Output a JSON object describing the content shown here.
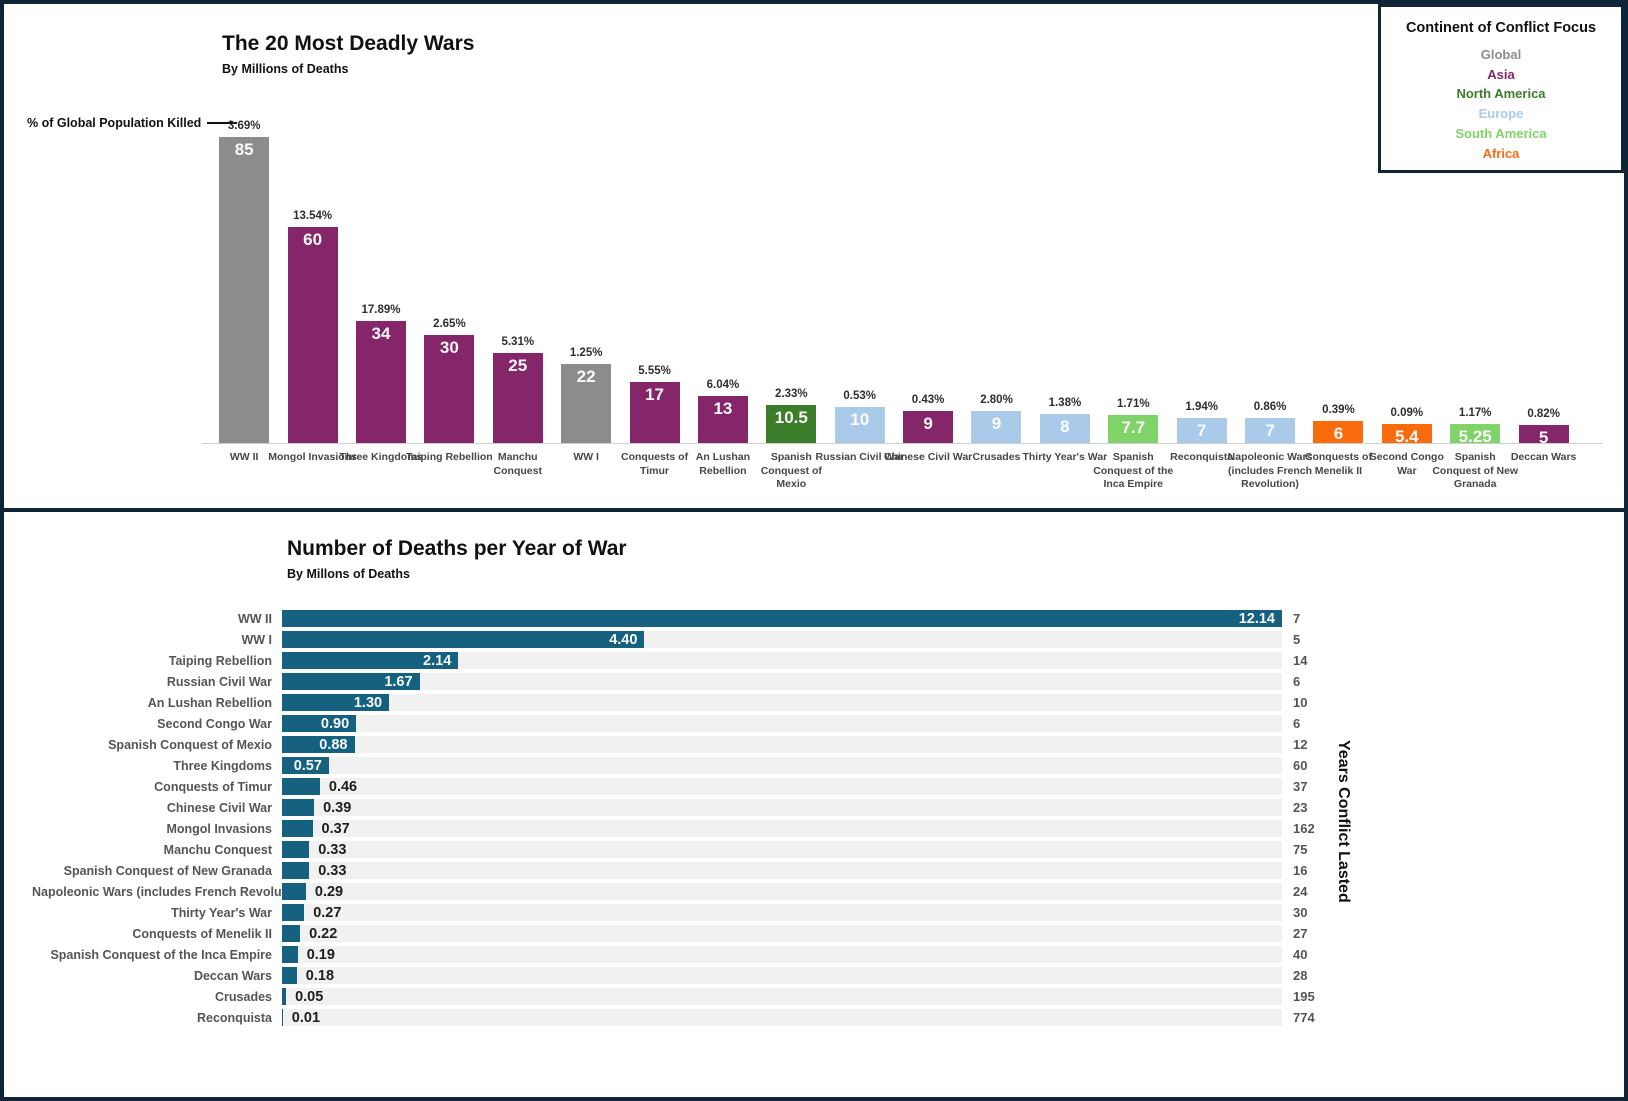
{
  "colors": {
    "border_navy": "#0F2537",
    "track_gray": "#F1F1F1",
    "axis_gray": "#CFCFCF",
    "bar_teal": "#16617F"
  },
  "chart_data": [
    {
      "type": "bar",
      "title": "The 20 Most Deadly Wars",
      "subtitle": "By Millions of Deaths",
      "annotation": "% of Global Population Killed",
      "ylim": [
        0,
        85
      ],
      "grid": false,
      "legend_position": "top-right",
      "legend": {
        "title": "Continent of Conflict Focus",
        "items": [
          {
            "label": "Global",
            "color": "#8C8C8C"
          },
          {
            "label": "Asia",
            "color": "#86266A"
          },
          {
            "label": "North America",
            "color": "#3B7D28"
          },
          {
            "label": "Europe",
            "color": "#A9CBE9"
          },
          {
            "label": "South America",
            "color": "#7FD369"
          },
          {
            "label": "Africa",
            "color": "#F96B0C"
          }
        ]
      },
      "categories": [
        "WW II",
        "Mongol Invasions",
        "Three Kingdoms",
        "Taiping Rebellion",
        "Manchu Conquest",
        "WW I",
        "Conquests of Timur",
        "An Lushan Rebellion",
        "Spanish Conquest of Mexio",
        "Russian Civil War",
        "Chinese Civil War",
        "Crusades",
        "Thirty Year's War",
        "Spanish Conquest of the Inca Empire",
        "Reconquista",
        "Napoleonic Wars (includes French Revolution)",
        "Conquests of Menelik II",
        "Second Congo War",
        "Spanish Conquest of New Granada",
        "Deccan Wars"
      ],
      "values": [
        85,
        60,
        34,
        30,
        25,
        22,
        17,
        13,
        10.5,
        10,
        9,
        9,
        8,
        7.7,
        7,
        7,
        6,
        5.4,
        5.25,
        5
      ],
      "value_labels": [
        "85",
        "60",
        "34",
        "30",
        "25",
        "22",
        "17",
        "13",
        "10.5",
        "10",
        "9",
        "9",
        "8",
        "7.7",
        "7",
        "7",
        "6",
        "5.4",
        "5.25",
        "5"
      ],
      "pct_labels": [
        "3.69%",
        "13.54%",
        "17.89%",
        "2.65%",
        "5.31%",
        "1.25%",
        "5.55%",
        "6.04%",
        "2.33%",
        "0.53%",
        "0.43%",
        "2.80%",
        "1.38%",
        "1.71%",
        "1.94%",
        "0.86%",
        "0.39%",
        "0.09%",
        "1.17%",
        "0.82%"
      ],
      "continents": [
        "Global",
        "Asia",
        "Asia",
        "Asia",
        "Asia",
        "Global",
        "Asia",
        "Asia",
        "North America",
        "Europe",
        "Asia",
        "Europe",
        "Europe",
        "South America",
        "Europe",
        "Europe",
        "Africa",
        "Africa",
        "South America",
        "Asia"
      ]
    },
    {
      "type": "bar-horizontal",
      "title": "Number of Deaths per Year of War",
      "subtitle": "By Millons of Deaths",
      "right_axis_label": "Years Conflict Lasted",
      "xlim": [
        0,
        12.14
      ],
      "grid": false,
      "bar_color": "#16617F",
      "categories": [
        "WW II",
        "WW I",
        "Taiping Rebellion",
        "Russian Civil War",
        "An Lushan Rebellion",
        "Second Congo War",
        "Spanish Conquest of Mexio",
        "Three Kingdoms",
        "Conquests of Timur",
        "Chinese Civil War",
        "Mongol Invasions",
        "Manchu Conquest",
        "Spanish Conquest of New Granada",
        "Napoleonic Wars (includes French Revolution)",
        "Thirty Year's War",
        "Conquests of Menelik II",
        "Spanish Conquest of the Inca Empire",
        "Deccan Wars",
        "Crusades",
        "Reconquista"
      ],
      "values": [
        12.14,
        4.4,
        2.14,
        1.67,
        1.3,
        0.9,
        0.88,
        0.57,
        0.46,
        0.39,
        0.37,
        0.33,
        0.33,
        0.29,
        0.27,
        0.22,
        0.19,
        0.18,
        0.05,
        0.01
      ],
      "value_labels": [
        "12.14",
        "4.40",
        "2.14",
        "1.67",
        "1.30",
        "0.90",
        "0.88",
        "0.57",
        "0.46",
        "0.39",
        "0.37",
        "0.33",
        "0.33",
        "0.29",
        "0.27",
        "0.22",
        "0.19",
        "0.18",
        "0.05",
        "0.01"
      ],
      "years_conflict_lasted": [
        7,
        5,
        14,
        6,
        10,
        6,
        12,
        60,
        37,
        23,
        162,
        75,
        16,
        24,
        30,
        27,
        40,
        28,
        195,
        774
      ]
    }
  ]
}
